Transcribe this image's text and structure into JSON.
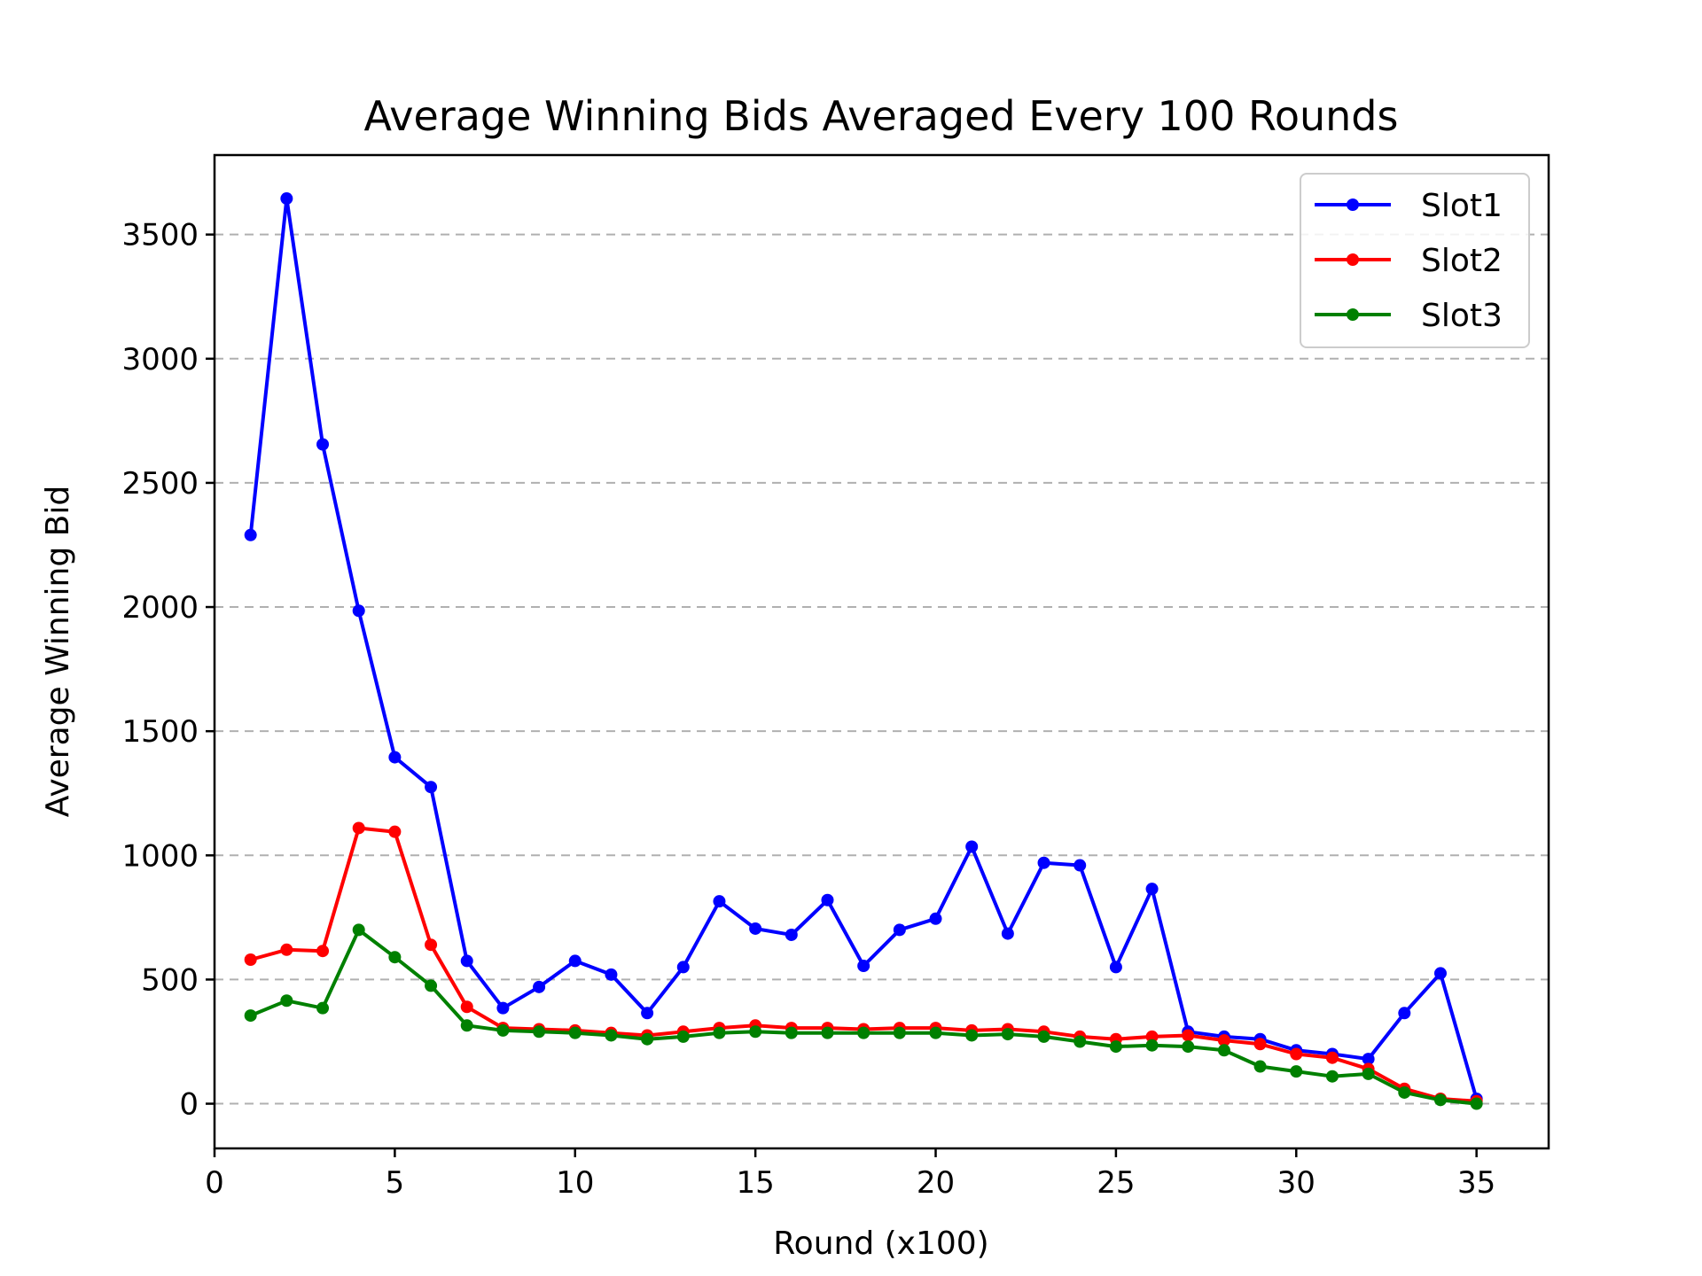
{
  "chart_data": {
    "type": "line",
    "title": "Average Winning Bids Averaged Every 100 Rounds",
    "xlabel": "Round (x100)",
    "ylabel": "Average Winning Bid",
    "xlim": [
      0,
      37
    ],
    "ylim": [
      -180,
      3820
    ],
    "xticks": [
      0,
      5,
      10,
      15,
      20,
      25,
      30,
      35
    ],
    "yticks": [
      0,
      500,
      1000,
      1500,
      2000,
      2500,
      3000,
      3500
    ],
    "grid": "y-dashed",
    "legend_position": "top-right",
    "x": [
      1,
      2,
      3,
      4,
      5,
      6,
      7,
      8,
      9,
      10,
      11,
      12,
      13,
      14,
      15,
      16,
      17,
      18,
      19,
      20,
      21,
      22,
      23,
      24,
      25,
      26,
      27,
      28,
      29,
      30,
      31,
      32,
      33,
      34,
      35
    ],
    "series": [
      {
        "name": "Slot1",
        "color": "#0000ff",
        "values": [
          2290,
          3645,
          2655,
          1985,
          1395,
          1275,
          575,
          385,
          470,
          575,
          520,
          365,
          550,
          815,
          705,
          680,
          820,
          555,
          700,
          745,
          1035,
          685,
          970,
          960,
          550,
          865,
          290,
          270,
          260,
          215,
          200,
          180,
          365,
          525,
          20
        ]
      },
      {
        "name": "Slot2",
        "color": "#ff0000",
        "values": [
          580,
          620,
          615,
          1110,
          1095,
          640,
          390,
          305,
          300,
          295,
          285,
          275,
          290,
          305,
          315,
          305,
          305,
          300,
          305,
          305,
          295,
          300,
          290,
          270,
          260,
          270,
          275,
          255,
          240,
          200,
          185,
          140,
          60,
          20,
          10
        ]
      },
      {
        "name": "Slot3",
        "color": "#008000",
        "values": [
          355,
          415,
          385,
          700,
          590,
          475,
          315,
          295,
          290,
          285,
          275,
          260,
          270,
          285,
          290,
          285,
          285,
          285,
          285,
          285,
          275,
          280,
          270,
          250,
          230,
          235,
          230,
          215,
          150,
          130,
          110,
          120,
          45,
          15,
          0
        ]
      }
    ]
  }
}
